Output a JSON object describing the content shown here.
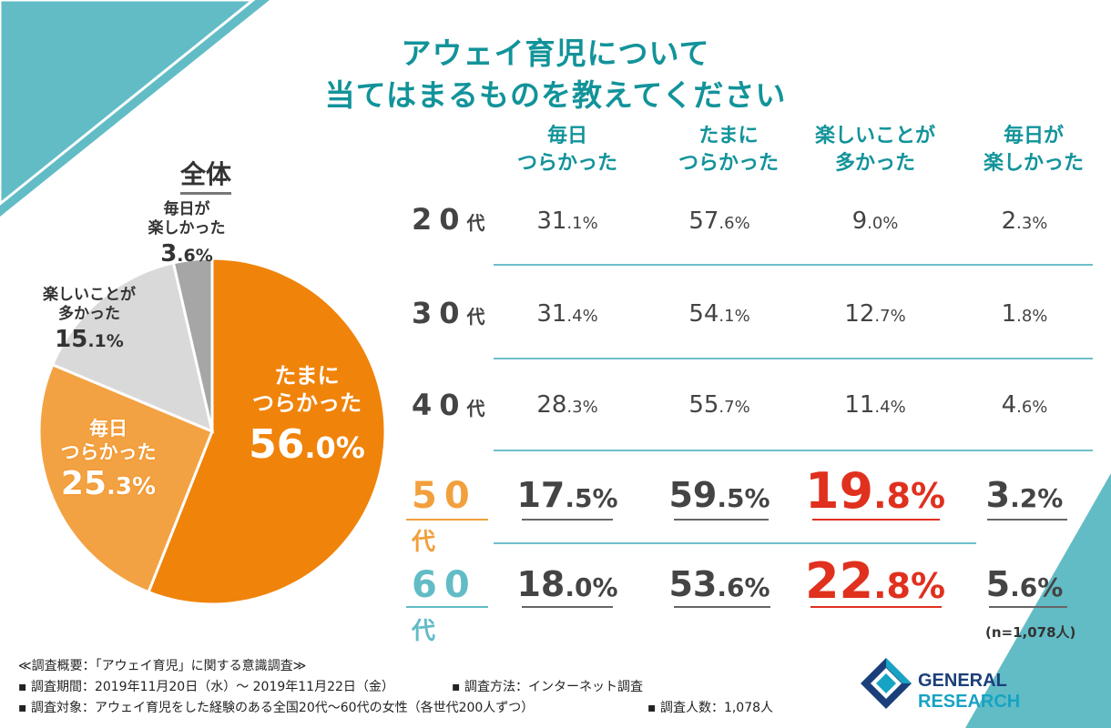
{
  "title": {
    "line1": "アウェイ育児について",
    "line2": "当てはまるものを教えてください"
  },
  "colors": {
    "teal": "#12939a",
    "corner": "#62bcc6",
    "orange_dark": "#f0830a",
    "orange_light": "#f3a243",
    "gray_light": "#d9d9d9",
    "gray_dark": "#a6a6a6",
    "red": "#e0301e",
    "row50": "#f2a03d",
    "row60": "#62bcc6"
  },
  "chart_data": [
    {
      "type": "pie",
      "title": "全体",
      "slices": [
        {
          "name_line1": "たまに",
          "name_line2": "つらかった",
          "value": 56.0,
          "int": "56",
          "dec": ".0%",
          "color": "#f0830a"
        },
        {
          "name_line1": "毎日",
          "name_line2": "つらかった",
          "value": 25.3,
          "int": "25",
          "dec": ".3%",
          "color": "#f3a243"
        },
        {
          "name_line1": "楽しいことが",
          "name_line2": "多かった",
          "value": 15.1,
          "int": "15",
          "dec": ".1%",
          "color": "#d9d9d9"
        },
        {
          "name_line1": "毎日が",
          "name_line2": "楽しかった",
          "value": 3.6,
          "int": "3",
          "dec": ".6%",
          "color": "#a6a6a6"
        }
      ]
    },
    {
      "type": "table",
      "columns": [
        {
          "line1": "毎日",
          "line2": "つらかった"
        },
        {
          "line1": "たまに",
          "line2": "つらかった"
        },
        {
          "line1": "楽しいことが",
          "line2": "多かった"
        },
        {
          "line1": "毎日が",
          "line2": "楽しかった"
        }
      ],
      "rows": [
        {
          "num": "20",
          "suffix": "代",
          "values": [
            {
              "int": "31",
              "dec": ".1%"
            },
            {
              "int": "57",
              "dec": ".6%"
            },
            {
              "int": "9",
              "dec": ".0%"
            },
            {
              "int": "2",
              "dec": ".3%"
            }
          ]
        },
        {
          "num": "30",
          "suffix": "代",
          "values": [
            {
              "int": "31",
              "dec": ".4%"
            },
            {
              "int": "54",
              "dec": ".1%"
            },
            {
              "int": "12",
              "dec": ".7%"
            },
            {
              "int": "1",
              "dec": ".8%"
            }
          ]
        },
        {
          "num": "40",
          "suffix": "代",
          "values": [
            {
              "int": "28",
              "dec": ".3%"
            },
            {
              "int": "55",
              "dec": ".7%"
            },
            {
              "int": "11",
              "dec": ".4%"
            },
            {
              "int": "4",
              "dec": ".6%"
            }
          ]
        },
        {
          "num": "50",
          "suffix": "代",
          "values": [
            {
              "int": "17",
              "dec": ".5%"
            },
            {
              "int": "59",
              "dec": ".5%"
            },
            {
              "int": "19",
              "dec": ".8%"
            },
            {
              "int": "3",
              "dec": ".2%"
            }
          ]
        },
        {
          "num": "60",
          "suffix": "代",
          "values": [
            {
              "int": "18",
              "dec": ".0%"
            },
            {
              "int": "53",
              "dec": ".6%"
            },
            {
              "int": "22",
              "dec": ".8%"
            },
            {
              "int": "5",
              "dec": ".6%"
            }
          ]
        }
      ]
    }
  ],
  "note": "(n=1,078人)",
  "footer": {
    "line1": "≪調査概要：「アウェイ育児」に関する意識調査≫",
    "line2a": "▪ 調査期間：2019年11月20日（水）～ 2019年11月22日（金）",
    "line2b": "▪ 調査方法：インターネット調査",
    "line3a": "▪ 調査対象：アウェイ育児をした経験のある全国20代～60代の女性（各世代200人ずつ）",
    "line3b": "▪ 調査人数：1,078人"
  },
  "logo": {
    "part1": "GENERAL",
    "part2": " RESEARCH"
  }
}
